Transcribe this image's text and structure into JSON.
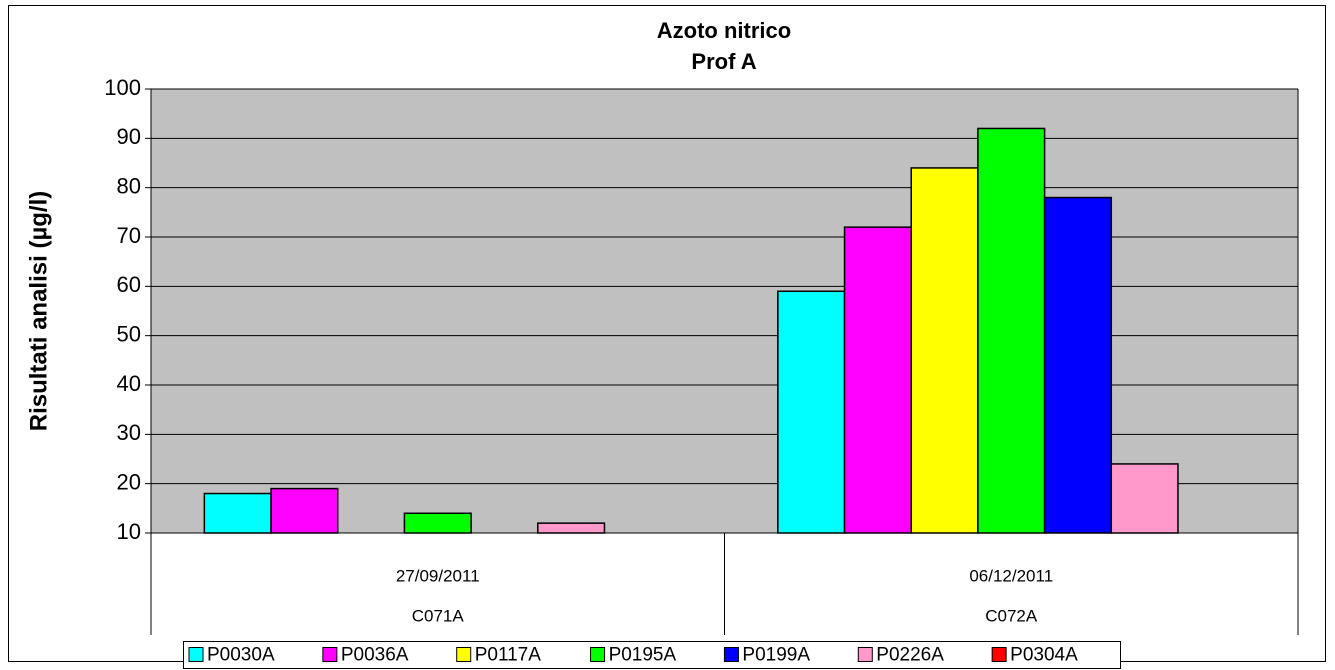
{
  "chart_data": {
    "type": "bar",
    "title": "Azoto nitrico",
    "subtitle": "Prof A",
    "y_label": "Risultati analisi (µg/l)",
    "categories": [
      "27/09/2011",
      "06/12/2011"
    ],
    "category_groups": [
      "C071A",
      "C072A"
    ],
    "series": [
      {
        "name": "P0030A",
        "color": "#00ffff",
        "values": [
          18,
          59
        ]
      },
      {
        "name": "P0036A",
        "color": "#ff00ff",
        "values": [
          19,
          72
        ]
      },
      {
        "name": "P0117A",
        "color": "#ffff00",
        "values": [
          null,
          84
        ]
      },
      {
        "name": "P0195A",
        "color": "#00ff00",
        "values": [
          14,
          92
        ]
      },
      {
        "name": "P0199A",
        "color": "#0000ff",
        "values": [
          null,
          78
        ]
      },
      {
        "name": "P0226A",
        "color": "#ff99cc",
        "values": [
          12,
          24
        ]
      },
      {
        "name": "P0304A",
        "color": "#ff0000",
        "values": [
          null,
          null
        ]
      }
    ],
    "ylim": [
      10,
      100
    ],
    "yticks": [
      10,
      20,
      30,
      40,
      50,
      60,
      70,
      80,
      90,
      100
    ],
    "grid": true,
    "plot_color": "#c0c0c0",
    "legend": "bottom"
  }
}
